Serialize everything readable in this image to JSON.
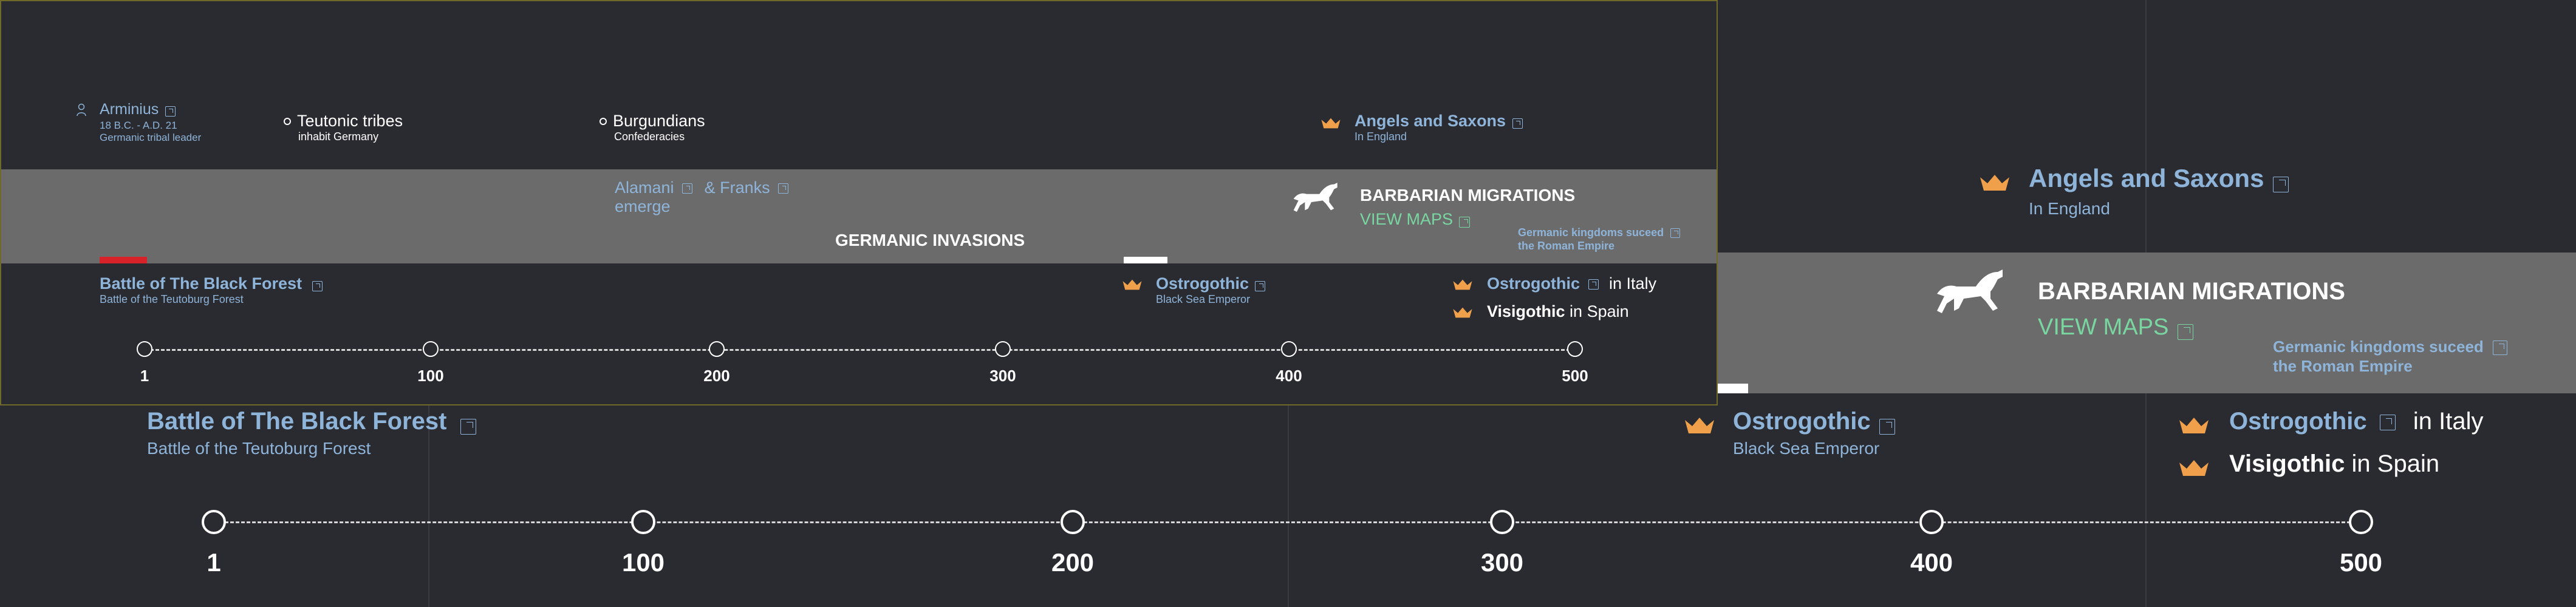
{
  "colors": {
    "background": "#2a2b30",
    "band": "#6b6b6b",
    "link": "#8fb4d9",
    "accent_green": "#7ad6a1",
    "crown": "#f0a04a",
    "red_marker": "#d8222a"
  },
  "small": {
    "arminius": {
      "name": "Arminius",
      "dates": "18 B.C. - A.D. 21",
      "desc": "Germanic tribal leader",
      "icon": "person-icon"
    },
    "teutonic": {
      "name": "Teutonic tribes",
      "desc": "inhabit Germany"
    },
    "burgundians": {
      "name": "Burgundians",
      "desc": "Confederacies"
    },
    "angels": {
      "name": "Angels and Saxons",
      "desc": "In England"
    },
    "alamani": {
      "name": "Alamani",
      "emerge": "emerge",
      "franks": "& Franks"
    },
    "band_title": "GERMANIC INVASIONS",
    "barbarian": {
      "title": "BARBARIAN MIGRATIONS",
      "maps": "VIEW MAPS"
    },
    "kingdoms": {
      "line1": "Germanic kingdoms suceed",
      "line2": "the Roman Empire"
    },
    "battle": {
      "name": "Battle of The Black Forest",
      "desc": "Battle of the Teutoburg Forest"
    },
    "ostro_black": {
      "name": "Ostrogothic",
      "desc": "Black Sea Emperor"
    },
    "ostro_italy": {
      "name": "Ostrogothic",
      "suffix": "in Italy"
    },
    "visi_spain": {
      "name": "Visigothic",
      "suffix": "in Spain"
    },
    "ticks": [
      "1",
      "100",
      "200",
      "300",
      "400",
      "500"
    ]
  },
  "large": {
    "angels": {
      "name": "Angels and Saxons",
      "desc": "In England"
    },
    "barbarian": {
      "title": "BARBARIAN MIGRATIONS",
      "maps": "VIEW MAPS"
    },
    "kingdoms": {
      "line1": "Germanic kingdoms suceed",
      "line2": "the Roman Empire"
    },
    "battle": {
      "name": "Battle of The Black Forest",
      "desc": "Battle of the Teutoburg Forest"
    },
    "ostro_black": {
      "name": "Ostrogothic",
      "desc": "Black Sea Emperor"
    },
    "ostro_italy": {
      "name": "Ostrogothic",
      "suffix": "in Italy"
    },
    "visi_spain": {
      "name": "Visigothic",
      "suffix": "in Spain"
    },
    "ticks": [
      "1",
      "100",
      "200",
      "300",
      "400",
      "500"
    ]
  }
}
